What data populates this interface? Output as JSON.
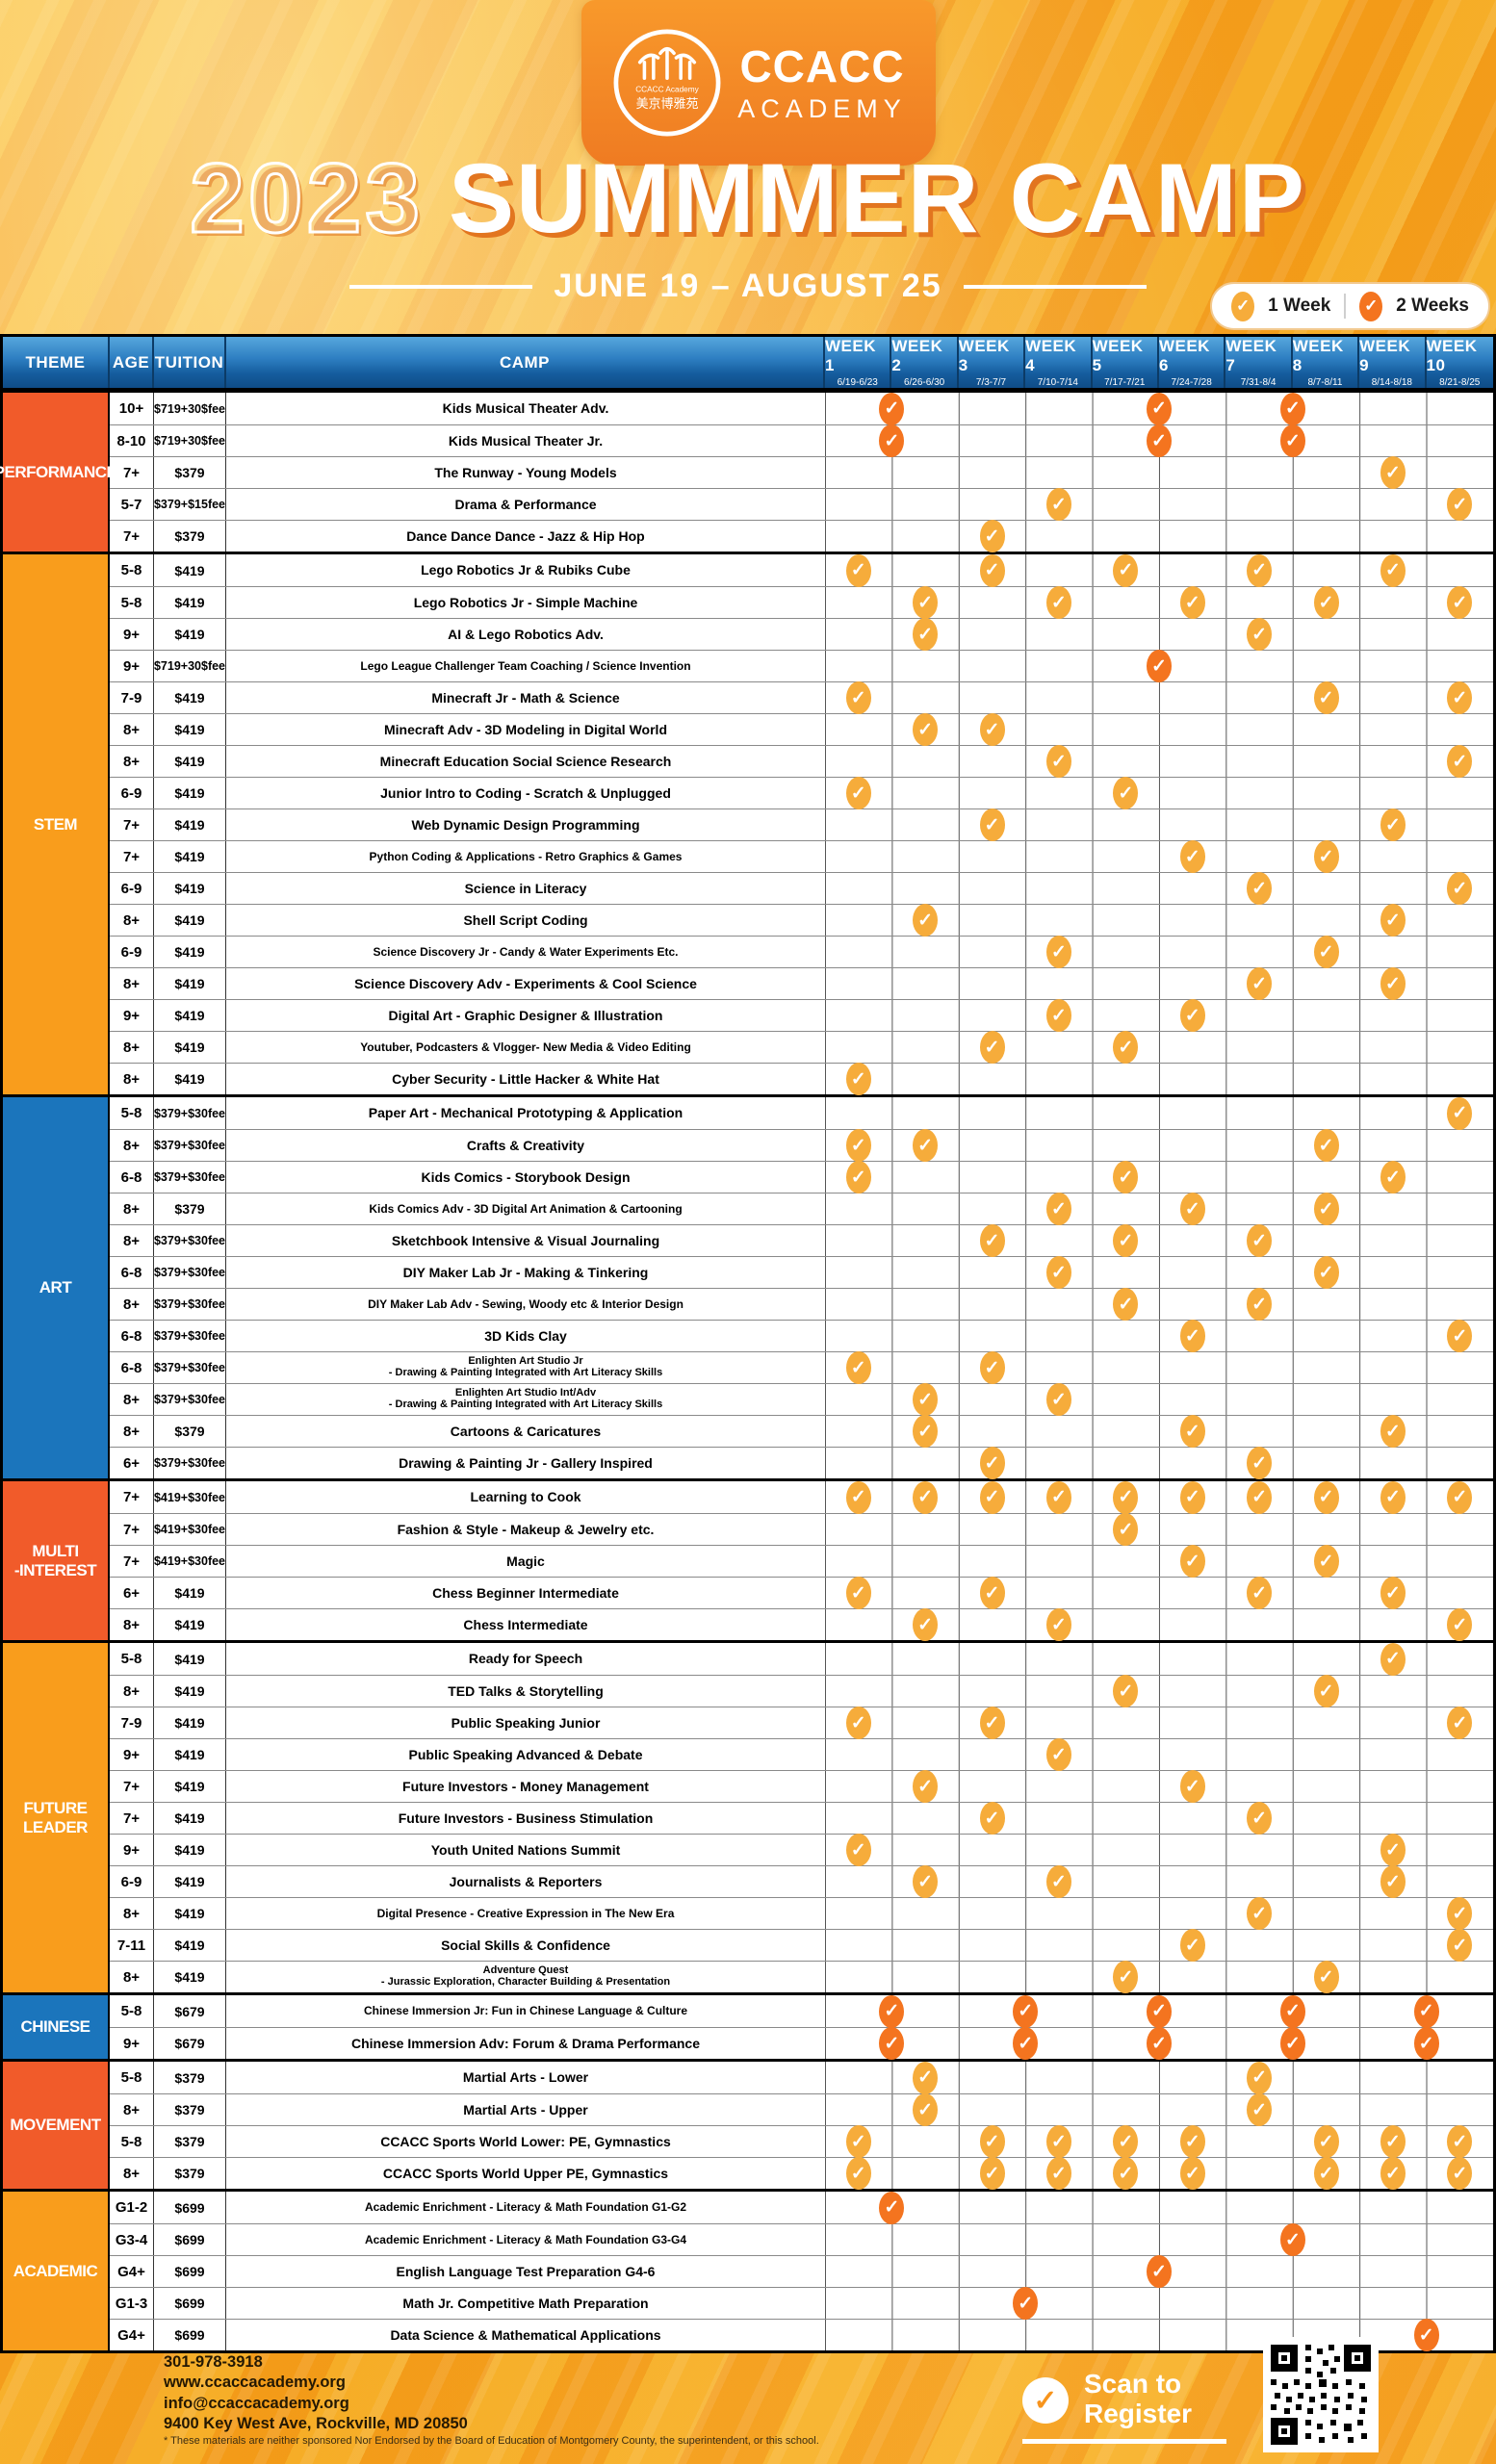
{
  "palette": {
    "coral": "#F15B2A",
    "amber": "#F99D1C",
    "blue": "#1B75BC",
    "one_week_check": "#F6AC3B",
    "two_week_check": "#F4741F",
    "header_blue_top": "#57A7DD",
    "header_blue_bottom": "#0F4C87"
  },
  "header": {
    "logo": {
      "org": "CCACC",
      "org_sub": "ACADEMY",
      "emblem_text_top": "CCACC Academy",
      "emblem_text_bottom": "美京博雅苑"
    },
    "year": "2023",
    "title": "SUMMMER CAMP",
    "date_range": "JUNE 19 – AUGUST 25"
  },
  "legend": {
    "one_week": "1 Week",
    "two_weeks": "2 Weeks"
  },
  "table": {
    "columns": {
      "theme": "THEME",
      "age": "AGE",
      "tuition": "TUITION",
      "camp": "CAMP"
    },
    "weeks": [
      {
        "label": "WEEK 1",
        "dates": "6/19-6/23"
      },
      {
        "label": "WEEK 2",
        "dates": "6/26-6/30"
      },
      {
        "label": "WEEK 3",
        "dates": "7/3-7/7"
      },
      {
        "label": "WEEK 4",
        "dates": "7/10-7/14"
      },
      {
        "label": "WEEK 5",
        "dates": "7/17-7/21"
      },
      {
        "label": "WEEK 6",
        "dates": "7/24-7/28"
      },
      {
        "label": "WEEK 7",
        "dates": "7/31-8/4"
      },
      {
        "label": "WEEK 8",
        "dates": "8/7-8/11"
      },
      {
        "label": "WEEK 9",
        "dates": "8/14-8/18"
      },
      {
        "label": "WEEK 10",
        "dates": "8/21-8/25"
      }
    ],
    "sections": [
      {
        "theme": "PERFORMANCE",
        "color": "coral",
        "rows": [
          {
            "age": "10+",
            "tuition": "$719+30$fee",
            "camp": "Kids Musical Theater Adv.",
            "two_week": [
              1,
              5,
              7
            ]
          },
          {
            "age": "8-10",
            "tuition": "$719+30$fee",
            "camp": "Kids Musical Theater Jr.",
            "two_week": [
              1,
              5,
              7
            ]
          },
          {
            "age": "7+",
            "tuition": "$379",
            "camp": "The Runway - Young Models",
            "one_week": [
              9
            ]
          },
          {
            "age": "5-7",
            "tuition": "$379+$15fee",
            "camp": "Drama & Performance",
            "one_week": [
              4,
              10
            ]
          },
          {
            "age": "7+",
            "tuition": "$379",
            "camp": "Dance Dance Dance - Jazz & Hip Hop",
            "one_week": [
              3
            ]
          }
        ]
      },
      {
        "theme": "STEM",
        "color": "amber",
        "rows": [
          {
            "age": "5-8",
            "tuition": "$419",
            "camp": "Lego Robotics Jr & Rubiks Cube",
            "one_week": [
              1,
              3,
              5,
              7,
              9
            ]
          },
          {
            "age": "5-8",
            "tuition": "$419",
            "camp": "Lego Robotics Jr - Simple Machine",
            "one_week": [
              2,
              4,
              6,
              8,
              10
            ]
          },
          {
            "age": "9+",
            "tuition": "$419",
            "camp": "AI & Lego Robotics Adv.",
            "one_week": [
              2,
              7
            ]
          },
          {
            "age": "9+",
            "tuition": "$719+30$fee",
            "camp": "Lego League Challenger Team Coaching / Science Invention",
            "two_week": [
              5
            ]
          },
          {
            "age": "7-9",
            "tuition": "$419",
            "camp": "Minecraft Jr - Math & Science",
            "one_week": [
              1,
              8,
              10
            ]
          },
          {
            "age": "8+",
            "tuition": "$419",
            "camp": "Minecraft Adv - 3D Modeling in Digital World",
            "one_week": [
              2,
              3
            ]
          },
          {
            "age": "8+",
            "tuition": "$419",
            "camp": "Minecraft Education Social Science Research",
            "one_week": [
              4,
              10
            ]
          },
          {
            "age": "6-9",
            "tuition": "$419",
            "camp": "Junior Intro to Coding - Scratch & Unplugged",
            "one_week": [
              1,
              5
            ]
          },
          {
            "age": "7+",
            "tuition": "$419",
            "camp": "Web Dynamic Design Programming",
            "one_week": [
              3,
              9
            ]
          },
          {
            "age": "7+",
            "tuition": "$419",
            "camp": "Python Coding & Applications - Retro Graphics & Games",
            "one_week": [
              6,
              8
            ]
          },
          {
            "age": "6-9",
            "tuition": "$419",
            "camp": "Science in Literacy",
            "one_week": [
              7,
              10
            ]
          },
          {
            "age": "8+",
            "tuition": "$419",
            "camp": "Shell Script Coding",
            "one_week": [
              2,
              9
            ]
          },
          {
            "age": "6-9",
            "tuition": "$419",
            "camp": "Science Discovery Jr - Candy & Water Experiments Etc.",
            "one_week": [
              4,
              8
            ]
          },
          {
            "age": "8+",
            "tuition": "$419",
            "camp": "Science Discovery Adv - Experiments & Cool Science",
            "one_week": [
              7,
              9
            ]
          },
          {
            "age": "9+",
            "tuition": "$419",
            "camp": "Digital Art - Graphic Designer & Illustration",
            "one_week": [
              4,
              6
            ]
          },
          {
            "age": "8+",
            "tuition": "$419",
            "camp": "Youtuber, Podcasters & Vlogger- New Media & Video Editing",
            "one_week": [
              3,
              5
            ]
          },
          {
            "age": "8+",
            "tuition": "$419",
            "camp": "Cyber Security - Little Hacker & White Hat",
            "one_week": [
              1
            ]
          }
        ]
      },
      {
        "theme": "ART",
        "color": "blue",
        "rows": [
          {
            "age": "5-8",
            "tuition": "$379+$30fee",
            "camp": "Paper Art - Mechanical Prototyping & Application",
            "one_week": [
              10
            ]
          },
          {
            "age": "8+",
            "tuition": "$379+$30fee",
            "camp": "Crafts & Creativity",
            "one_week": [
              1,
              2,
              8
            ]
          },
          {
            "age": "6-8",
            "tuition": "$379+$30fee",
            "camp": "Kids Comics - Storybook Design",
            "one_week": [
              1,
              5,
              9
            ]
          },
          {
            "age": "8+",
            "tuition": "$379",
            "camp": "Kids Comics Adv - 3D Digital Art Animation & Cartooning",
            "one_week": [
              4,
              6,
              8
            ]
          },
          {
            "age": "8+",
            "tuition": "$379+$30fee",
            "camp": "Sketchbook Intensive & Visual Journaling",
            "one_week": [
              3,
              5,
              7
            ]
          },
          {
            "age": "6-8",
            "tuition": "$379+$30fee",
            "camp": "DIY Maker Lab Jr - Making & Tinkering",
            "one_week": [
              4,
              8
            ]
          },
          {
            "age": "8+",
            "tuition": "$379+$30fee",
            "camp": "DIY Maker Lab Adv - Sewing, Woody etc & Interior Design",
            "one_week": [
              5,
              7
            ]
          },
          {
            "age": "6-8",
            "tuition": "$379+$30fee",
            "camp": "3D Kids Clay",
            "one_week": [
              6,
              10
            ]
          },
          {
            "age": "6-8",
            "tuition": "$379+$30fee",
            "camp": "Enlighten Art Studio Jr",
            "camp_line2": "- Drawing & Painting Integrated with Art Literacy Skills",
            "one_week": [
              1,
              3
            ]
          },
          {
            "age": "8+",
            "tuition": "$379+$30fee",
            "camp": "Enlighten Art Studio Int/Adv",
            "camp_line2": "- Drawing & Painting Integrated with Art Literacy Skills",
            "one_week": [
              2,
              4
            ]
          },
          {
            "age": "8+",
            "tuition": "$379",
            "camp": "Cartoons & Caricatures",
            "one_week": [
              2,
              6,
              9
            ]
          },
          {
            "age": "6+",
            "tuition": "$379+$30fee",
            "camp": "Drawing & Painting Jr - Gallery Inspired",
            "one_week": [
              3,
              7
            ]
          }
        ]
      },
      {
        "theme": "MULTI\n-INTEREST",
        "color": "coral",
        "rows": [
          {
            "age": "7+",
            "tuition": "$419+$30fee",
            "camp": "Learning to Cook",
            "one_week": [
              1,
              2,
              3,
              4,
              5,
              6,
              7,
              8,
              9,
              10
            ]
          },
          {
            "age": "7+",
            "tuition": "$419+$30fee",
            "camp": "Fashion & Style - Makeup & Jewelry etc.",
            "one_week": [
              5
            ]
          },
          {
            "age": "7+",
            "tuition": "$419+$30fee",
            "camp": "Magic",
            "one_week": [
              6,
              8
            ]
          },
          {
            "age": "6+",
            "tuition": "$419",
            "camp": "Chess Beginner Intermediate",
            "one_week": [
              1,
              3,
              7,
              9
            ]
          },
          {
            "age": "8+",
            "tuition": "$419",
            "camp": "Chess Intermediate",
            "one_week": [
              2,
              4,
              10
            ]
          }
        ]
      },
      {
        "theme": "FUTURE\nLEADER",
        "color": "amber",
        "rows": [
          {
            "age": "5-8",
            "tuition": "$419",
            "camp": "Ready for Speech",
            "one_week": [
              9
            ]
          },
          {
            "age": "8+",
            "tuition": "$419",
            "camp": "TED Talks & Storytelling",
            "one_week": [
              5,
              8
            ]
          },
          {
            "age": "7-9",
            "tuition": "$419",
            "camp": "Public Speaking Junior",
            "one_week": [
              1,
              3,
              10
            ]
          },
          {
            "age": "9+",
            "tuition": "$419",
            "camp": "Public Speaking Advanced & Debate",
            "one_week": [
              4
            ]
          },
          {
            "age": "7+",
            "tuition": "$419",
            "camp": "Future Investors - Money Management",
            "one_week": [
              2,
              6
            ]
          },
          {
            "age": "7+",
            "tuition": "$419",
            "camp": "Future Investors - Business Stimulation",
            "one_week": [
              3,
              7
            ]
          },
          {
            "age": "9+",
            "tuition": "$419",
            "camp": "Youth United Nations Summit",
            "one_week": [
              1,
              9
            ]
          },
          {
            "age": "6-9",
            "tuition": "$419",
            "camp": "Journalists & Reporters",
            "one_week": [
              2,
              4,
              9
            ]
          },
          {
            "age": "8+",
            "tuition": "$419",
            "camp": "Digital Presence - Creative Expression in The New Era",
            "one_week": [
              7,
              10
            ]
          },
          {
            "age": "7-11",
            "tuition": "$419",
            "camp": "Social Skills & Confidence",
            "one_week": [
              6,
              10
            ]
          },
          {
            "age": "8+",
            "tuition": "$419",
            "camp": "Adventure Quest",
            "camp_line2": "- Jurassic Exploration, Character Building & Presentation",
            "one_week": [
              5,
              8
            ]
          }
        ]
      },
      {
        "theme": "CHINESE",
        "color": "blue",
        "rows": [
          {
            "age": "5-8",
            "tuition": "$679",
            "camp": "Chinese Immersion Jr: Fun in Chinese Language & Culture",
            "two_week": [
              1,
              3,
              5,
              7,
              9
            ]
          },
          {
            "age": "9+",
            "tuition": "$679",
            "camp": "Chinese Immersion Adv: Forum & Drama Performance",
            "two_week": [
              1,
              3,
              5,
              7,
              9
            ]
          }
        ]
      },
      {
        "theme": "MOVEMENT",
        "color": "coral",
        "rows": [
          {
            "age": "5-8",
            "tuition": "$379",
            "camp": "Martial Arts - Lower",
            "one_week": [
              2,
              7
            ]
          },
          {
            "age": "8+",
            "tuition": "$379",
            "camp": "Martial Arts - Upper",
            "one_week": [
              2,
              7
            ]
          },
          {
            "age": "5-8",
            "tuition": "$379",
            "camp": "CCACC Sports World Lower: PE, Gymnastics",
            "one_week": [
              1,
              3,
              4,
              5,
              6,
              8,
              9,
              10
            ]
          },
          {
            "age": "8+",
            "tuition": "$379",
            "camp": "CCACC Sports World Upper PE, Gymnastics",
            "one_week": [
              1,
              3,
              4,
              5,
              6,
              8,
              9,
              10
            ]
          }
        ]
      },
      {
        "theme": "ACADEMIC",
        "color": "amber",
        "rows": [
          {
            "age": "G1-2",
            "tuition": "$699",
            "camp": "Academic Enrichment - Literacy & Math Foundation G1-G2",
            "two_week": [
              1
            ]
          },
          {
            "age": "G3-4",
            "tuition": "$699",
            "camp": "Academic Enrichment - Literacy & Math Foundation G3-G4",
            "two_week": [
              7
            ]
          },
          {
            "age": "G4+",
            "tuition": "$699",
            "camp": "English Language Test Preparation G4-6",
            "two_week": [
              5
            ]
          },
          {
            "age": "G1-3",
            "tuition": "$699",
            "camp": "Math Jr. Competitive Math Preparation",
            "two_week": [
              3
            ]
          },
          {
            "age": "G4+",
            "tuition": "$699",
            "camp": "Data Science & Mathematical Applications",
            "two_week": [
              9
            ]
          }
        ]
      }
    ]
  },
  "footer": {
    "phone": "301-978-3918",
    "website": "www.ccaccacademy.org",
    "email": "info@ccaccacademy.org",
    "address": "9400 Key West Ave, Rockville, MD 20850",
    "disclaimer": "* These materials are neither sponsored Nor Endorsed by the Board of Education of Montgomery County, the superintendent, or this school.",
    "scan_line1": "Scan to",
    "scan_line2": "Register"
  }
}
